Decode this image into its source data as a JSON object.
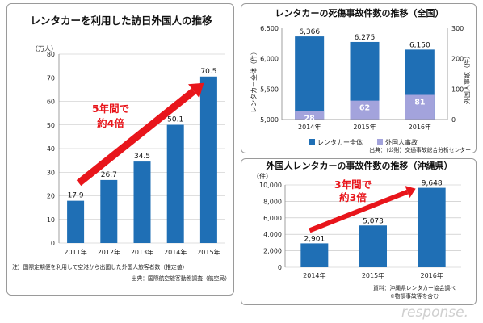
{
  "colors": {
    "bar": "#1f6fb5",
    "foreign": "#a3a3dc",
    "arrow": "#e8151b",
    "grid": "#bfbfbf"
  },
  "watermark": "response.",
  "chart_data": [
    {
      "type": "bar",
      "title": "レンタカーを利用した訪日外国人の推移",
      "ylabel": "（万人）",
      "categories": [
        "2011年",
        "2012年",
        "2013年",
        "2014年",
        "2015年"
      ],
      "values": [
        17.9,
        26.7,
        34.5,
        50.1,
        70.5
      ],
      "ylim": [
        0,
        80
      ],
      "yticks": [
        0,
        10,
        20,
        30,
        40,
        50,
        60,
        70,
        80
      ],
      "grid": true,
      "annotation": [
        "5年間で",
        "約4倍"
      ],
      "notes": [
        "注）国際定期便を利用して空港から出国した外国人旅客者数（推定値）",
        "出典：国際航空旅客動態調査（航空局）"
      ]
    },
    {
      "type": "bar",
      "title": "レンタカーの死傷事故件数の推移（全国）",
      "ylabel": "レンタカー全体（件）",
      "y2label": "外国人事故（件）",
      "categories": [
        "2014年",
        "2015年",
        "2016年"
      ],
      "series": [
        {
          "name": "レンタカー全体",
          "values": [
            6366,
            6275,
            6150
          ]
        },
        {
          "name": "外国人事故",
          "values": [
            28,
            62,
            81
          ]
        }
      ],
      "ylim": [
        5000,
        6500
      ],
      "yticks": [
        "5,000",
        "5,500",
        "6,000",
        "6,500"
      ],
      "y2lim": [
        0,
        300
      ],
      "y2ticks": [
        0,
        100,
        200,
        300
      ],
      "value_labels": [
        "6,366",
        "6,275",
        "6,150"
      ],
      "legend": "bottom",
      "notes": [
        "出典：（公財）交通事故総合分析センター"
      ]
    },
    {
      "type": "bar",
      "title": "外国人レンタカーの事故件数の推移（沖縄県）",
      "ylabel": "（件）",
      "categories": [
        "2014年",
        "2015年",
        "2016年"
      ],
      "values": [
        2901,
        5073,
        9648
      ],
      "value_labels": [
        "2,901",
        "5,073",
        "9,648"
      ],
      "ylim": [
        0,
        10000
      ],
      "yticks": [
        "0",
        "2,000",
        "4,000",
        "6,000",
        "8,000",
        "10,000"
      ],
      "grid": true,
      "annotation": [
        "3年間で",
        "約3倍"
      ],
      "notes": [
        "資料：沖縄県レンタカー協会調べ",
        "※物損事故等を含む"
      ]
    }
  ]
}
